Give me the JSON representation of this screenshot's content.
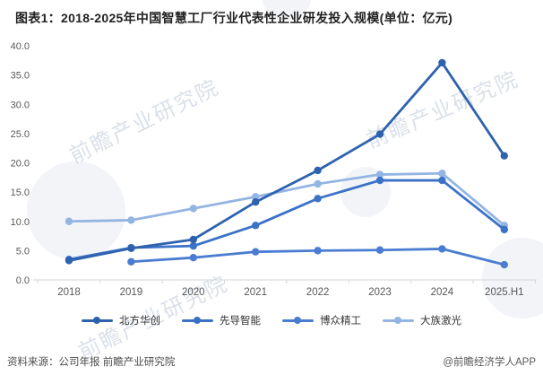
{
  "title": "图表1：2018-2025年中国智慧工厂行业代表性企业研发投入规模(单位：亿元)",
  "chart_data": {
    "type": "line",
    "categories": [
      "2018",
      "2019",
      "2020",
      "2021",
      "2022",
      "2023",
      "2024",
      "2025.H1"
    ],
    "series": [
      {
        "name": "北方华创",
        "color": "#2f62ae",
        "values": [
          3.3,
          5.4,
          6.9,
          13.3,
          18.7,
          24.9,
          37.1,
          21.2
        ]
      },
      {
        "name": "先导智能",
        "color": "#3b72c8",
        "values": [
          3.5,
          5.5,
          5.8,
          9.3,
          13.9,
          17.0,
          17.0,
          8.6
        ]
      },
      {
        "name": "博众精工",
        "color": "#4a7dd1",
        "values": [
          null,
          3.1,
          3.8,
          4.8,
          5.0,
          5.1,
          5.3,
          2.6
        ]
      },
      {
        "name": "大族激光",
        "color": "#93b5e3",
        "values": [
          10.0,
          10.2,
          12.2,
          14.2,
          16.4,
          18.0,
          18.2,
          9.3
        ]
      }
    ],
    "ylim": [
      0,
      40
    ],
    "ytick_step": 5,
    "ytick_labels": [
      "0.0",
      "5.0",
      "10.0",
      "15.0",
      "20.0",
      "25.0",
      "30.0",
      "35.0",
      "40.0"
    ],
    "grid": false,
    "legend_position": "bottom",
    "title": "图表1：2018-2025年中国智慧工厂行业代表性企业研发投入规模(单位：亿元)",
    "xlabel": "",
    "ylabel": ""
  },
  "watermark": {
    "text": "前瞻产业研究院"
  },
  "footer": {
    "source": "资料来源：公司年报 前瞻产业研究院",
    "credit": "@前瞻经济学人APP"
  },
  "style": {
    "axis_color": "#d6d6d6",
    "tick_label_color": "#595959"
  }
}
